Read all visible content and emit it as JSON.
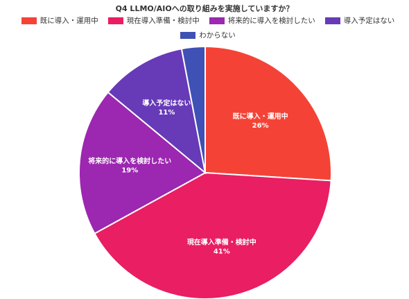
{
  "chart_data": {
    "type": "pie",
    "title": "Q4 LLMO/AIOへの取り組みを実施していますか？",
    "legend_position": "top",
    "slices": [
      {
        "label": "既に導入・運用中",
        "value": 26,
        "value_label": "26%",
        "color": "#f44336"
      },
      {
        "label": "現在導入準備・検討中",
        "value": 41,
        "value_label": "41%",
        "color": "#e91e63"
      },
      {
        "label": "将来的に導入を検討したい",
        "value": 19,
        "value_label": "19%",
        "color": "#9c27b0"
      },
      {
        "label": "導入予定はない",
        "value": 11,
        "value_label": "11%",
        "color": "#673ab7"
      },
      {
        "label": "わからない",
        "value": 3,
        "value_label": "",
        "color": "#3f51b5"
      }
    ]
  }
}
